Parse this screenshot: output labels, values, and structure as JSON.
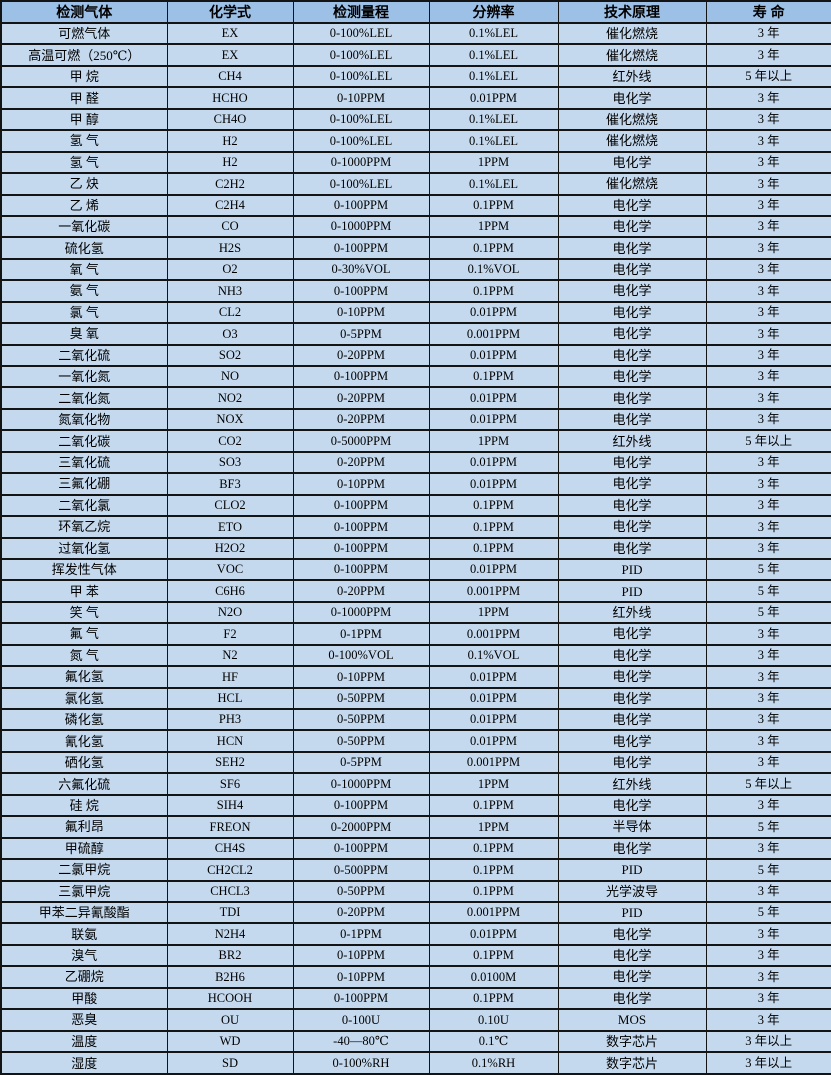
{
  "colors": {
    "header_bg": "#9CC0E6",
    "row_bg": "#C5D9EE",
    "border": "#141414",
    "text": "#000000"
  },
  "table": {
    "headers": [
      "检测气体",
      "化学式",
      "检测量程",
      "分辨率",
      "技术原理",
      "寿 命"
    ],
    "rows": [
      [
        "可燃气体",
        "EX",
        "0-100%LEL",
        "0.1%LEL",
        "催化燃烧",
        "3 年"
      ],
      [
        "高温可燃（250℃）",
        "EX",
        "0-100%LEL",
        "0.1%LEL",
        "催化燃烧",
        "3 年"
      ],
      [
        "甲 烷",
        "CH4",
        "0-100%LEL",
        "0.1%LEL",
        "红外线",
        "5 年以上"
      ],
      [
        "甲 醛",
        "HCHO",
        "0-10PPM",
        "0.01PPM",
        "电化学",
        "3 年"
      ],
      [
        "甲 醇",
        "CH4O",
        "0-100%LEL",
        "0.1%LEL",
        "催化燃烧",
        "3 年"
      ],
      [
        "氢 气",
        "H2",
        "0-100%LEL",
        "0.1%LEL",
        "催化燃烧",
        "3 年"
      ],
      [
        "氢 气",
        "H2",
        "0-1000PPM",
        "1PPM",
        "电化学",
        "3 年"
      ],
      [
        "乙 炔",
        "C2H2",
        "0-100%LEL",
        "0.1%LEL",
        "催化燃烧",
        "3 年"
      ],
      [
        "乙 烯",
        "C2H4",
        "0-100PPM",
        "0.1PPM",
        "电化学",
        "3 年"
      ],
      [
        "一氧化碳",
        "CO",
        "0-1000PPM",
        "1PPM",
        "电化学",
        "3 年"
      ],
      [
        "硫化氢",
        "H2S",
        "0-100PPM",
        "0.1PPM",
        "电化学",
        "3 年"
      ],
      [
        "氧 气",
        "O2",
        "0-30%VOL",
        "0.1%VOL",
        "电化学",
        "3 年"
      ],
      [
        "氨 气",
        "NH3",
        "0-100PPM",
        "0.1PPM",
        "电化学",
        "3 年"
      ],
      [
        "氯 气",
        "CL2",
        "0-10PPM",
        "0.01PPM",
        "电化学",
        "3 年"
      ],
      [
        "臭 氧",
        "O3",
        "0-5PPM",
        "0.001PPM",
        "电化学",
        "3 年"
      ],
      [
        "二氧化硫",
        "SO2",
        "0-20PPM",
        "0.01PPM",
        "电化学",
        "3 年"
      ],
      [
        "一氧化氮",
        "NO",
        "0-100PPM",
        "0.1PPM",
        "电化学",
        "3 年"
      ],
      [
        "二氧化氮",
        "NO2",
        "0-20PPM",
        "0.01PPM",
        "电化学",
        "3 年"
      ],
      [
        "氮氧化物",
        "NOX",
        "0-20PPM",
        "0.01PPM",
        "电化学",
        "3 年"
      ],
      [
        "二氧化碳",
        "CO2",
        "0-5000PPM",
        "1PPM",
        "红外线",
        "5 年以上"
      ],
      [
        "三氧化硫",
        "SO3",
        "0-20PPM",
        "0.01PPM",
        "电化学",
        "3 年"
      ],
      [
        "三氟化硼",
        "BF3",
        "0-10PPM",
        "0.01PPM",
        "电化学",
        "3 年"
      ],
      [
        "二氧化氯",
        "CLO2",
        "0-100PPM",
        "0.1PPM",
        "电化学",
        "3 年"
      ],
      [
        "环氧乙烷",
        "ETO",
        "0-100PPM",
        "0.1PPM",
        "电化学",
        "3 年"
      ],
      [
        "过氧化氢",
        "H2O2",
        "0-100PPM",
        "0.1PPM",
        "电化学",
        "3 年"
      ],
      [
        "挥发性气体",
        "VOC",
        "0-100PPM",
        "0.01PPM",
        "PID",
        "5 年"
      ],
      [
        "甲 苯",
        "C6H6",
        "0-20PPM",
        "0.001PPM",
        "PID",
        "5 年"
      ],
      [
        "笑 气",
        "N2O",
        "0-1000PPM",
        "1PPM",
        "红外线",
        "5 年"
      ],
      [
        "氟 气",
        "F2",
        "0-1PPM",
        "0.001PPM",
        "电化学",
        "3 年"
      ],
      [
        "氮 气",
        "N2",
        "0-100%VOL",
        "0.1%VOL",
        "电化学",
        "3 年"
      ],
      [
        "氟化氢",
        "HF",
        "0-10PPM",
        "0.01PPM",
        "电化学",
        "3 年"
      ],
      [
        "氯化氢",
        "HCL",
        "0-50PPM",
        "0.01PPM",
        "电化学",
        "3 年"
      ],
      [
        "磷化氢",
        "PH3",
        "0-50PPM",
        "0.01PPM",
        "电化学",
        "3 年"
      ],
      [
        "氰化氢",
        "HCN",
        "0-50PPM",
        "0.01PPM",
        "电化学",
        "3 年"
      ],
      [
        "硒化氢",
        "SEH2",
        "0-5PPM",
        "0.001PPM",
        "电化学",
        "3 年"
      ],
      [
        "六氟化硫",
        "SF6",
        "0-1000PPM",
        "1PPM",
        "红外线",
        "5 年以上"
      ],
      [
        "硅 烷",
        "SIH4",
        "0-100PPM",
        "0.1PPM",
        "电化学",
        "3 年"
      ],
      [
        "氟利昂",
        "FREON",
        "0-2000PPM",
        "1PPM",
        "半导体",
        "5 年"
      ],
      [
        "甲硫醇",
        "CH4S",
        "0-100PPM",
        "0.1PPM",
        "电化学",
        "3 年"
      ],
      [
        "二氯甲烷",
        "CH2CL2",
        "0-500PPM",
        "0.1PPM",
        "PID",
        "5 年"
      ],
      [
        "三氯甲烷",
        "CHCL3",
        "0-50PPM",
        "0.1PPM",
        "光学波导",
        "3 年"
      ],
      [
        "甲苯二异氰酸酯",
        "TDI",
        "0-20PPM",
        "0.001PPM",
        "PID",
        "5 年"
      ],
      [
        "联氨",
        "N2H4",
        "0-1PPM",
        "0.01PPM",
        "电化学",
        "3 年"
      ],
      [
        "溴气",
        "BR2",
        "0-10PPM",
        "0.1PPM",
        "电化学",
        "3 年"
      ],
      [
        "乙硼烷",
        "B2H6",
        "0-10PPM",
        "0.0100M",
        "电化学",
        "3 年"
      ],
      [
        "甲酸",
        "HCOOH",
        "0-100PPM",
        "0.1PPM",
        "电化学",
        "3 年"
      ],
      [
        "恶臭",
        "OU",
        "0-100U",
        "0.10U",
        "MOS",
        "3 年"
      ],
      [
        "温度",
        "WD",
        "-40—80℃",
        "0.1℃",
        "数字芯片",
        "3 年以上"
      ],
      [
        "湿度",
        "SD",
        "0-100%RH",
        "0.1%RH",
        "数字芯片",
        "3 年以上"
      ]
    ]
  }
}
